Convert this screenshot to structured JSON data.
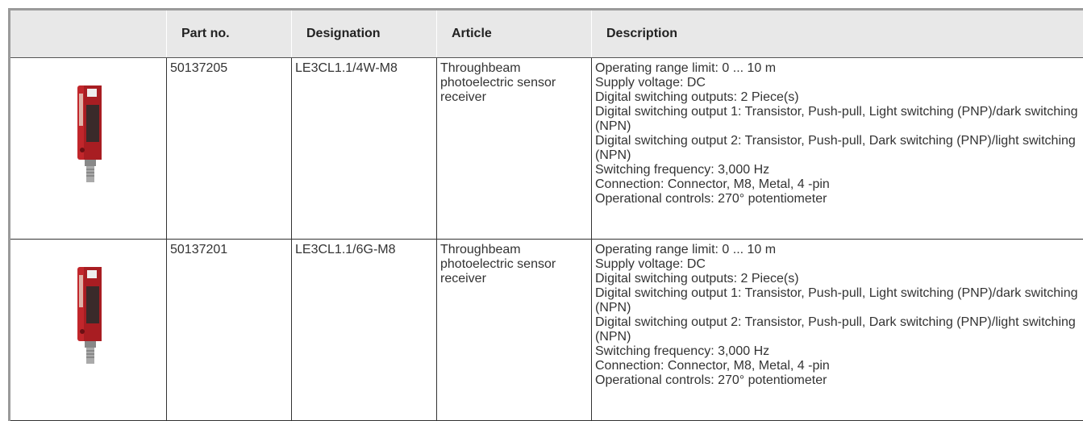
{
  "header": {
    "columns": [
      "Part no.",
      "Designation",
      "Article",
      "Description"
    ]
  },
  "rows": [
    {
      "part_no": "50137205",
      "designation": "LE3CL1.1/4W-M8",
      "article": "Throughbeam photoelectric sensor receiver",
      "description": [
        "Operating range limit: 0 ... 10 m",
        "Supply voltage: DC",
        "Digital switching outputs: 2 Piece(s)",
        "Digital switching output 1: Transistor, Push-pull, Light switching (PNP)/dark switching (NPN)",
        "Digital switching output 2: Transistor, Push-pull, Dark switching (PNP)/light switching (NPN)",
        "Switching frequency: 3,000 Hz",
        "Connection: Connector, M8, Metal, 4 -pin",
        "Operational controls: 270° potentiometer"
      ]
    },
    {
      "part_no": "50137201",
      "designation": "LE3CL1.1/6G-M8",
      "article": "Throughbeam photoelectric sensor receiver",
      "description": [
        "Operating range limit: 0 ... 10 m",
        "Supply voltage: DC",
        "Digital switching outputs: 2 Piece(s)",
        "Digital switching output 1: Transistor, Push-pull, Light switching (PNP)/dark switching (NPN)",
        "Digital switching output 2: Transistor, Push-pull, Dark switching (PNP)/light switching (NPN)",
        "Switching frequency: 3,000 Hz",
        "Connection: Connector, M8, Metal, 4 -pin",
        "Operational controls: 270° potentiometer"
      ]
    }
  ]
}
